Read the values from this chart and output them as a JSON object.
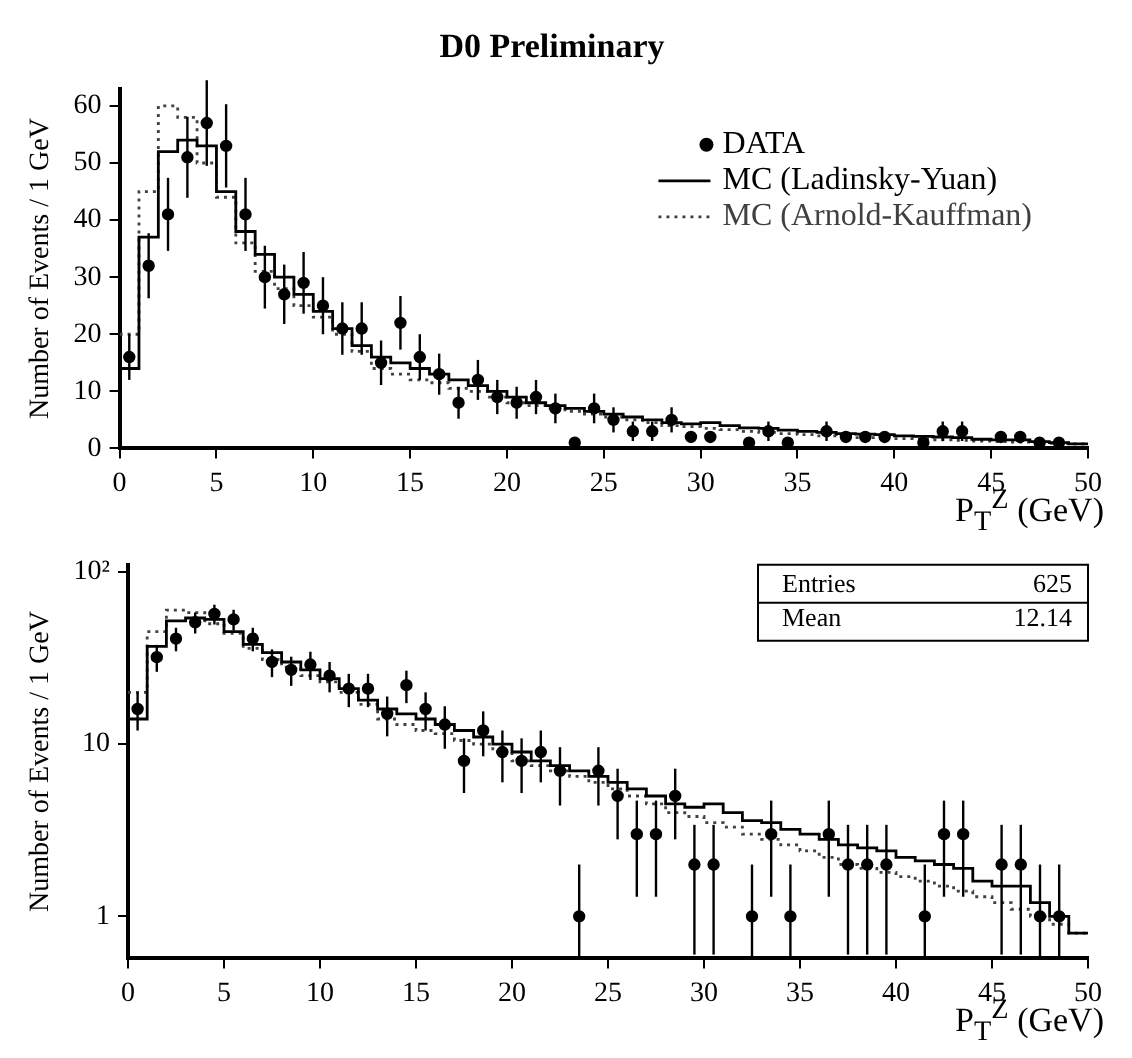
{
  "chart_data": [
    {
      "type": "histogram",
      "title": "D0 Preliminary",
      "xlabel": "P$_{T}$$^{Z}$ (GeV)",
      "ylabel": "Number of Events / 1 GeV",
      "legend": "top right",
      "grid": false,
      "bins": [
        0,
        1,
        2,
        3,
        4,
        5,
        6,
        7,
        8,
        9,
        10,
        11,
        12,
        13,
        14,
        15,
        16,
        17,
        18,
        19,
        20,
        21,
        22,
        23,
        24,
        25,
        26,
        27,
        28,
        29,
        30,
        31,
        32,
        33,
        34,
        35,
        36,
        37,
        38,
        39,
        40,
        41,
        42,
        43,
        44,
        45,
        46,
        47,
        48,
        49,
        50
      ],
      "xlim": [
        0,
        50
      ],
      "xticks": [
        0,
        5,
        10,
        15,
        20,
        25,
        30,
        35,
        40,
        45,
        50
      ],
      "ylim": [
        0,
        63
      ],
      "yticks": [
        0,
        10,
        20,
        30,
        40,
        50,
        60
      ],
      "series": [
        {
          "name": "DATA",
          "type": "scatter",
          "marker": "circle",
          "color": "#000000",
          "x": [
            0.5,
            1.5,
            2.5,
            3.5,
            4.5,
            5.5,
            6.5,
            7.5,
            8.5,
            9.5,
            10.5,
            11.5,
            12.5,
            13.5,
            14.5,
            15.5,
            16.5,
            17.5,
            18.5,
            19.5,
            20.5,
            21.5,
            22.5,
            23.5,
            24.5,
            25.5,
            26.5,
            27.5,
            28.5,
            29.5,
            30.5,
            32.5,
            33.5,
            34.5,
            36.5,
            37.5,
            38.5,
            39.5,
            41.5,
            42.5,
            43.5,
            45.5,
            46.5,
            47.5,
            48.5
          ],
          "values": [
            16,
            32,
            41,
            51,
            57,
            53,
            41,
            30,
            27,
            29,
            25,
            21,
            21,
            15,
            22,
            16,
            13,
            8,
            12,
            9,
            8,
            9,
            7,
            1,
            7,
            5,
            3,
            3,
            5,
            2,
            2,
            1,
            3,
            1,
            3,
            2,
            2,
            2,
            1,
            3,
            3,
            2,
            2,
            1,
            1
          ],
          "errors": [
            4,
            5.7,
            6.4,
            7.1,
            7.5,
            7.3,
            6.4,
            5.5,
            5.2,
            5.4,
            5,
            4.6,
            4.6,
            3.9,
            4.7,
            4,
            3.6,
            2.8,
            3.5,
            3,
            2.8,
            3,
            2.6,
            null,
            2.6,
            2.2,
            1.7,
            1.7,
            2.2,
            null,
            null,
            null,
            1.7,
            null,
            1.7,
            null,
            null,
            null,
            null,
            1.7,
            1.7,
            null,
            null,
            null,
            null
          ]
        },
        {
          "name": "MC (Ladinsky-Yuan)",
          "type": "histogram",
          "line_style": "solid",
          "color": "#000000",
          "values": [
            14,
            37,
            52,
            54,
            53,
            45,
            38,
            34,
            30,
            27,
            24,
            21,
            18,
            16,
            15,
            14,
            13,
            12,
            11,
            10,
            9,
            8,
            7.5,
            7,
            6.5,
            6,
            5.5,
            5,
            4.5,
            4.3,
            4.5,
            4,
            3.6,
            3.5,
            3.2,
            3,
            2.8,
            2.6,
            2.5,
            2.4,
            2.2,
            2.1,
            2,
            1.9,
            1.6,
            1.5,
            1.5,
            1.2,
            1,
            0.8
          ]
        },
        {
          "name": "MC (Arnold-Kauffman)",
          "type": "histogram",
          "line_style": "dotted",
          "color": "#404040",
          "values": [
            20,
            45,
            60,
            58,
            50,
            44,
            36,
            31,
            28,
            25,
            23,
            20,
            17,
            14,
            13,
            12,
            11.5,
            10.5,
            10,
            9,
            8,
            7.5,
            7,
            6.5,
            6,
            5.5,
            5,
            4.5,
            4,
            3.8,
            3.5,
            3.3,
            3,
            2.8,
            2.6,
            2.4,
            2.2,
            2,
            1.9,
            1.8,
            1.7,
            1.6,
            1.5,
            1.4,
            1.3,
            1.2,
            1.1,
            1,
            0.9,
            0.8
          ]
        }
      ]
    },
    {
      "type": "histogram",
      "xlabel": "P$_{T}$$^{Z}$ (GeV)",
      "ylabel": "Number of Events / 1 GeV",
      "log": "y",
      "grid": false,
      "annotations": [
        "Entries",
        "625",
        "Mean",
        "12.14"
      ],
      "bins": [
        0,
        1,
        2,
        3,
        4,
        5,
        6,
        7,
        8,
        9,
        10,
        11,
        12,
        13,
        14,
        15,
        16,
        17,
        18,
        19,
        20,
        21,
        22,
        23,
        24,
        25,
        26,
        27,
        28,
        29,
        30,
        31,
        32,
        33,
        34,
        35,
        36,
        37,
        38,
        39,
        40,
        41,
        42,
        43,
        44,
        45,
        46,
        47,
        48,
        49,
        50
      ],
      "xlim": [
        0,
        50
      ],
      "xticks": [
        0,
        5,
        10,
        15,
        20,
        25,
        30,
        35,
        40,
        45,
        50
      ],
      "ylim": [
        0.57,
        110
      ],
      "yticks": [
        1,
        10,
        {
          "value": 100,
          "label": "10²"
        }
      ],
      "series": [
        {
          "type": "scatter",
          "marker": "circle",
          "color": "#000000",
          "x": [
            0.5,
            1.5,
            2.5,
            3.5,
            4.5,
            5.5,
            6.5,
            7.5,
            8.5,
            9.5,
            10.5,
            11.5,
            12.5,
            13.5,
            14.5,
            15.5,
            16.5,
            17.5,
            18.5,
            19.5,
            20.5,
            21.5,
            22.5,
            23.5,
            24.5,
            25.5,
            26.5,
            27.5,
            28.5,
            29.5,
            30.5,
            32.5,
            33.5,
            34.5,
            36.5,
            37.5,
            38.5,
            39.5,
            41.5,
            42.5,
            43.5,
            45.5,
            46.5,
            47.5,
            48.5
          ],
          "values": [
            16,
            32,
            41,
            51,
            57,
            53,
            41,
            30,
            27,
            29,
            25,
            21,
            21,
            15,
            22,
            16,
            13,
            8,
            12,
            9,
            8,
            9,
            7,
            1,
            7,
            5,
            3,
            3,
            5,
            2,
            2,
            1,
            3,
            1,
            3,
            2,
            2,
            2,
            1,
            3,
            3,
            2,
            2,
            1,
            1
          ],
          "errors": [
            4,
            5.7,
            6.4,
            7.1,
            7.5,
            7.3,
            6.4,
            5.5,
            5.2,
            5.4,
            5,
            4.6,
            4.6,
            3.9,
            4.7,
            4,
            3.6,
            2.8,
            3.5,
            3,
            2.8,
            3,
            2.6,
            [
              0.57,
              2
            ],
            2.6,
            2.2,
            1.7,
            1.7,
            2.2,
            1.4,
            1.4,
            [
              0.57,
              2
            ],
            1.7,
            [
              0.57,
              2
            ],
            1.7,
            1.4,
            1.4,
            1.4,
            [
              0.57,
              2
            ],
            1.7,
            1.7,
            1.4,
            1.4,
            [
              0.57,
              2
            ],
            [
              0.57,
              2
            ]
          ]
        },
        {
          "type": "histogram",
          "line_style": "solid",
          "color": "#000000",
          "values": [
            14,
            37,
            52,
            54,
            53,
            45,
            38,
            34,
            30,
            27,
            24,
            21,
            18,
            16,
            15,
            14,
            13,
            12,
            11,
            10,
            9,
            8,
            7.5,
            7,
            6.5,
            6,
            5.5,
            5,
            4.5,
            4.3,
            4.5,
            4,
            3.6,
            3.5,
            3.2,
            3,
            2.8,
            2.6,
            2.5,
            2.4,
            2.2,
            2.1,
            2,
            1.9,
            1.6,
            1.5,
            1.5,
            1.2,
            1,
            0.8
          ]
        },
        {
          "type": "histogram",
          "line_style": "dotted",
          "color": "#404040",
          "values": [
            20,
            45,
            60,
            58,
            50,
            44,
            36,
            31,
            28,
            25,
            23,
            20,
            17,
            14,
            13,
            12,
            11.5,
            10.5,
            10,
            9,
            8,
            7.5,
            7,
            6.5,
            6,
            5.5,
            5,
            4.5,
            4,
            3.8,
            3.5,
            3.3,
            3,
            2.8,
            2.6,
            2.4,
            2.2,
            2,
            1.9,
            1.8,
            1.7,
            1.6,
            1.5,
            1.4,
            1.3,
            1.2,
            1.1,
            1,
            0.9,
            0.8
          ]
        }
      ]
    }
  ]
}
